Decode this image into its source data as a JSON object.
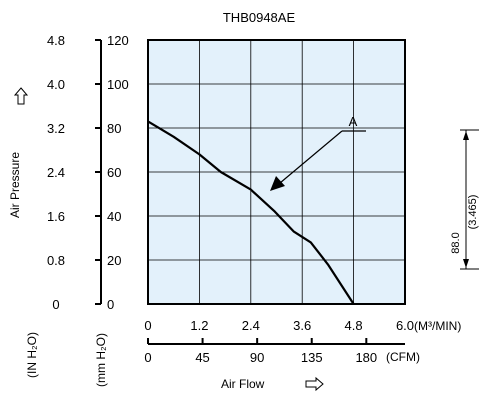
{
  "chart_data": {
    "type": "line",
    "title": "THB0948AE",
    "x_primary": {
      "label": "",
      "unit": "(M³/MIN)",
      "ticks": [
        "0",
        "1.2",
        "2.4",
        "3.6",
        "4.8",
        "6.0"
      ],
      "range": [
        0,
        6.0
      ]
    },
    "x_secondary": {
      "label": "Air Flow",
      "unit": "(CFM)",
      "ticks": [
        "0",
        "45",
        "90",
        "135",
        "180"
      ],
      "range": [
        0,
        211.9
      ]
    },
    "y_mm": {
      "unit": "(mm H₂O)",
      "ticks": [
        "0",
        "20",
        "40",
        "60",
        "80",
        "100",
        "120"
      ],
      "range": [
        0,
        120
      ]
    },
    "y_in": {
      "label": "Air Pressure",
      "unit": "(IN H₂O)",
      "ticks": [
        "0",
        "0.8",
        "1.6",
        "2.4",
        "3.2",
        "4.0",
        "4.8"
      ],
      "range": [
        0,
        4.8
      ]
    },
    "grid": true,
    "series": [
      {
        "name": "A",
        "x": [
          0,
          0.6,
          1.2,
          1.7,
          2.4,
          2.96,
          3.4,
          3.8,
          4.2,
          4.8
        ],
        "y": [
          83,
          76,
          68,
          60,
          52,
          42,
          33,
          28,
          18,
          0
        ]
      }
    ],
    "annotation": {
      "label": "A"
    }
  },
  "dimension": {
    "value": "88.0",
    "sub_value": "(3.465)"
  },
  "icons": {
    "up_arrow": "hollow-up-arrow-icon",
    "right_arrow": "hollow-right-arrow-icon"
  },
  "colors": {
    "plot_bg": "#e3f1fb",
    "line": "#000000",
    "grid": "#000000"
  }
}
